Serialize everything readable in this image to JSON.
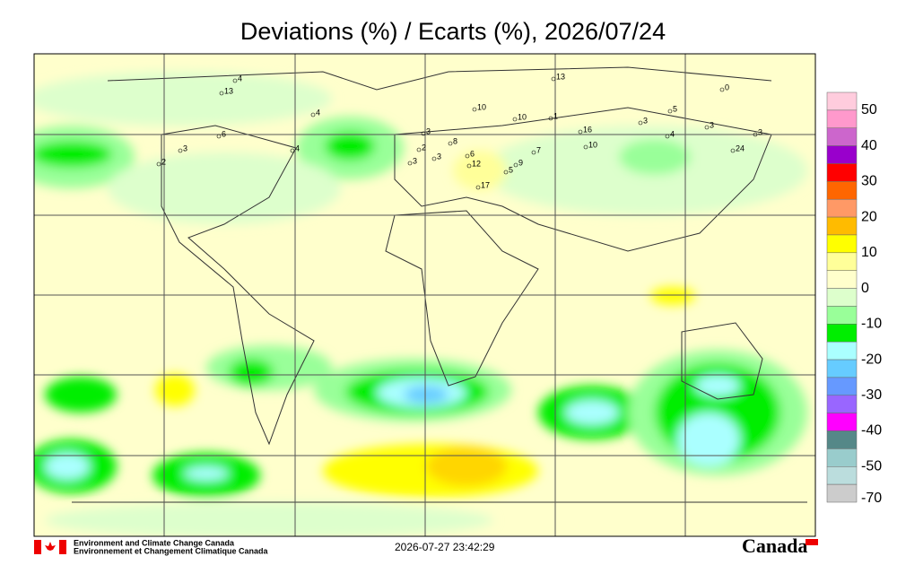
{
  "title": "Deviations (%) / Ecarts (%), 2026/07/24",
  "colorbar": {
    "colors": [
      "#ffccdd",
      "#ff99cc",
      "#cc66cc",
      "#9900cc",
      "#ff0000",
      "#ff6600",
      "#ff9966",
      "#ffbb00",
      "#ffff00",
      "#ffff99",
      "#ffffcc",
      "#ddffcc",
      "#99ff99",
      "#00ee00",
      "#aaffff",
      "#66ccff",
      "#6699ff",
      "#9966ff",
      "#ff00ff",
      "#558888",
      "#99cccc",
      "#bbdddd",
      "#cccccc"
    ],
    "ticks": [
      50,
      40,
      30,
      20,
      10,
      0,
      -10,
      -20,
      -30,
      -40,
      -50,
      -70
    ]
  },
  "stations": [
    "4",
    "13",
    "4",
    "6",
    "4",
    "3",
    "2",
    "3",
    "2",
    "8",
    "3",
    "3",
    "10",
    "10",
    "1",
    "13",
    "16",
    "10",
    "3",
    "5",
    "3",
    "4",
    "3",
    "24",
    "6",
    "12",
    "17",
    "5",
    "7",
    "9",
    "0"
  ],
  "footer": {
    "org_en": "Environment and Climate Change Canada",
    "org_fr": "Environnement et Changement Climatique Canada",
    "timestamp": "2026-07-27 23:42:29",
    "wordmark": "Canada"
  }
}
